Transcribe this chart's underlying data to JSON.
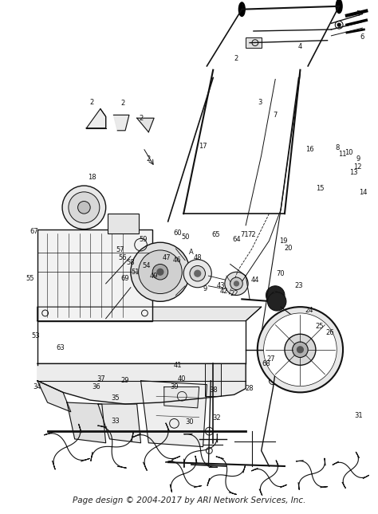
{
  "background_color": "#ffffff",
  "footer_text": "Page design © 2004-2017 by ARI Network Services, Inc.",
  "footer_fontsize": 7.5,
  "footer_color": "#222222",
  "figsize": [
    4.74,
    6.45
  ],
  "dpi": 100
}
